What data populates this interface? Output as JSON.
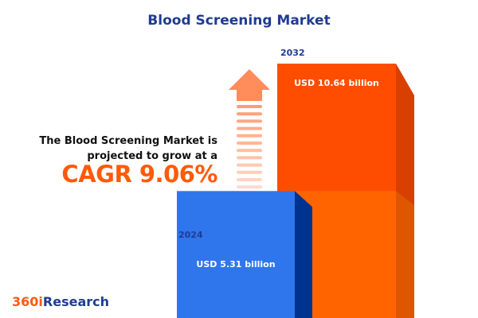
{
  "title": "Blood Screening Market",
  "blurb_line1": "The Blood Screening Market is",
  "blurb_line2": "projected to grow at a",
  "cagr_label": "CAGR 9.06%",
  "logo": {
    "part1": "360i",
    "part2": "Research"
  },
  "colors": {
    "orange": "#ff4d00",
    "blue": "#2f76ec",
    "title": "#1f3c93"
  },
  "chart_data": {
    "type": "bar",
    "categories": [
      "2024",
      "2032"
    ],
    "values": [
      5.31,
      10.64
    ],
    "data_labels": [
      "USD 5.31 billion",
      "USD 10.64 billion"
    ],
    "unit": "USD billion",
    "cagr": "9.06%"
  }
}
